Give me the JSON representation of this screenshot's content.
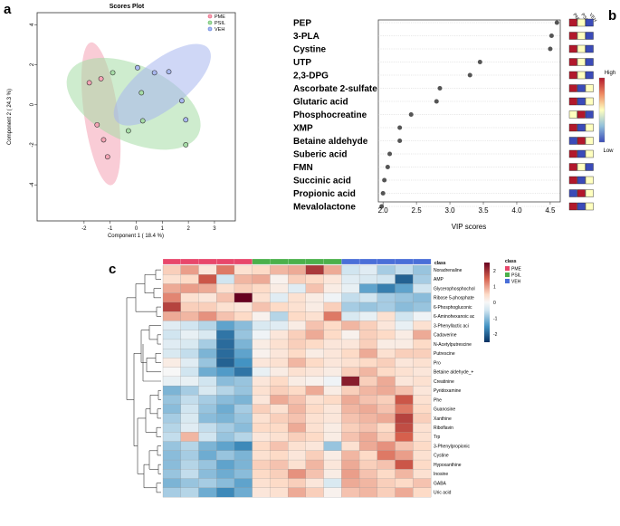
{
  "panel_labels": {
    "a": "a",
    "b": "b",
    "c": "c"
  },
  "colors": {
    "pme": "#e8476b",
    "psil": "#4bb04b",
    "veh": "#4a6fd8",
    "pme_fill": "#f4a3b4",
    "psil_fill": "#a6dca6",
    "veh_fill": "#a8b7ee",
    "dot": "#555555",
    "grid": "#d0d0d0",
    "vip_high": "#b2182b",
    "vip_mid": "#ffffbf",
    "vip_low": "#3b4bb8"
  },
  "chart_data": [
    {
      "id": "scores-plot",
      "type": "scatter",
      "title": "Scores Plot",
      "xlabel": "Component 1 ( 18.4 %)",
      "ylabel": "Component 2 ( 24.3 %)",
      "xlim": [
        -3.8,
        3.8
      ],
      "ylim": [
        -5.8,
        4.6
      ],
      "xticks": [
        -2,
        -1,
        0,
        1,
        2,
        3
      ],
      "yticks": [
        -4,
        -2,
        0,
        2,
        4
      ],
      "legend_position": "top-right",
      "series": [
        {
          "name": "PME",
          "color_key": "pme",
          "points": [
            [
              -1.8,
              1.1
            ],
            [
              -1.35,
              1.3
            ],
            [
              -1.5,
              -1.0
            ],
            [
              -1.25,
              -1.75
            ],
            [
              -1.1,
              -2.6
            ]
          ],
          "ellipse": {
            "cx": -1.35,
            "cy": -0.45,
            "rx": 0.65,
            "ry": 3.6,
            "angle": -8
          }
        },
        {
          "name": "PSIL",
          "color_key": "psil",
          "points": [
            [
              -0.9,
              1.6
            ],
            [
              0.2,
              0.6
            ],
            [
              -0.3,
              -1.3
            ],
            [
              0.25,
              -0.8
            ],
            [
              1.9,
              -2.0
            ]
          ],
          "ellipse": {
            "cx": -0.1,
            "cy": 0.05,
            "rx": 2.75,
            "ry": 1.9,
            "angle": 25
          }
        },
        {
          "name": "VEH",
          "color_key": "veh",
          "points": [
            [
              0.05,
              1.85
            ],
            [
              0.7,
              1.6
            ],
            [
              1.25,
              1.65
            ],
            [
              1.75,
              0.2
            ],
            [
              1.9,
              -0.75
            ]
          ],
          "ellipse": {
            "cx": 1.0,
            "cy": 1.0,
            "rx": 2.25,
            "ry": 1.2,
            "angle": -38
          }
        }
      ]
    },
    {
      "id": "vip-scores",
      "type": "scatter",
      "xlabel": "VIP scores",
      "xlim": [
        1.93,
        4.65
      ],
      "xticks": [
        2.0,
        2.5,
        3.0,
        3.5,
        4.0,
        4.5
      ],
      "xtick_labels": [
        "2.0",
        "2.5",
        "3.0",
        "3.5",
        "4.0",
        "4.5"
      ],
      "features": [
        "PEP",
        "3-PLA",
        "Cystine",
        "UTP",
        "2,3-DPG",
        "Ascorbate 2-sulfate",
        "Glutaric acid",
        "Phosphocreatine",
        "XMP",
        "Betaine aldehyde",
        "Suberic acid",
        "FMN",
        "Succinic acid",
        "Propionic acid",
        "Mevalolactone"
      ],
      "values": [
        4.6,
        4.52,
        4.5,
        3.45,
        3.3,
        2.85,
        2.8,
        2.42,
        2.25,
        2.25,
        2.1,
        2.07,
        2.02,
        2.0,
        1.98
      ],
      "group_labels": [
        "PME",
        "PSIL",
        "VEH"
      ],
      "group_levels": [
        [
          "H",
          "M",
          "L"
        ],
        [
          "H",
          "M",
          "L"
        ],
        [
          "H",
          "M",
          "L"
        ],
        [
          "H",
          "M",
          "L"
        ],
        [
          "H",
          "M",
          "L"
        ],
        [
          "H",
          "L",
          "M"
        ],
        [
          "H",
          "L",
          "M"
        ],
        [
          "M",
          "H",
          "L"
        ],
        [
          "H",
          "L",
          "M"
        ],
        [
          "L",
          "H",
          "M"
        ],
        [
          "H",
          "L",
          "M"
        ],
        [
          "H",
          "M",
          "L"
        ],
        [
          "H",
          "L",
          "M"
        ],
        [
          "L",
          "H",
          "M"
        ],
        [
          "H",
          "L",
          "M"
        ]
      ],
      "colorbar_labels": {
        "high": "High",
        "low": "Low"
      }
    },
    {
      "id": "heatmap",
      "type": "heatmap",
      "class_label": "class",
      "classes": [
        "PME",
        "PSIL",
        "VEH"
      ],
      "class_columns": [
        5,
        5,
        5
      ],
      "colorbar_ticks": [
        2,
        1,
        0,
        -1,
        -2
      ],
      "vmin": -2.5,
      "vmax": 2.5,
      "rows": [
        "Noradrenaline",
        "AMP",
        "Glycerophosphochol",
        "Ribose 5-phosphate",
        "6-Phosphogluconic",
        "6-Aminohexanoic ac",
        "3-Phenyllactic aci",
        "Cadaverine",
        "N-Acetylputrescine",
        "Putrescine",
        "Pro",
        "Betaine aldehyde_+",
        "Creatinine",
        "Pyridoxamine",
        "Phe",
        "Guanosine",
        "Xanthine",
        "Riboflavin",
        "Trp",
        "3-Phenylpropionic",
        "Cystine",
        "Hypoxanthine",
        "Inosine",
        "GABA",
        "Uric acid"
      ],
      "values": [
        [
          0.6,
          1.0,
          0.3,
          1.3,
          0.4,
          0.5,
          0.8,
          0.9,
          1.9,
          0.9,
          -0.5,
          -0.3,
          -0.8,
          -0.6,
          -0.9
        ],
        [
          0.4,
          0.5,
          1.6,
          -0.5,
          0.8,
          0.9,
          0.1,
          0.6,
          0.5,
          0.3,
          -0.3,
          -0.4,
          -0.5,
          -2.0,
          -0.8
        ],
        [
          0.9,
          1.0,
          0.9,
          0.4,
          0.6,
          0.5,
          0.2,
          -0.3,
          0.7,
          0.2,
          -0.2,
          -1.3,
          -1.7,
          -1.3,
          -0.5
        ],
        [
          1.2,
          0.4,
          0.3,
          0.7,
          2.6,
          0.4,
          -0.3,
          0.4,
          0.2,
          -0.1,
          -0.6,
          -0.5,
          -0.8,
          -0.9,
          -1.0
        ],
        [
          1.8,
          0.6,
          0.6,
          0.4,
          0.3,
          0.7,
          0.5,
          0.4,
          0.2,
          0.6,
          -0.8,
          -0.9,
          -0.8,
          -1.0,
          -0.9
        ],
        [
          0.9,
          0.8,
          1.1,
          0.7,
          0.5,
          0.1,
          -0.7,
          0.5,
          0.4,
          1.3,
          -0.4,
          -0.2,
          0.4,
          -0.5,
          -0.1
        ],
        [
          -0.3,
          -0.5,
          -0.7,
          -1.3,
          -1.0,
          -0.4,
          -0.3,
          0.2,
          0.7,
          0.5,
          0.8,
          0.6,
          0.3,
          -0.2,
          0.4
        ],
        [
          -0.5,
          -0.2,
          -0.4,
          -1.8,
          -0.9,
          -0.1,
          0.3,
          0.6,
          0.9,
          0.5,
          0.1,
          0.6,
          0.5,
          0.2,
          0.9
        ],
        [
          -0.3,
          -0.4,
          -0.8,
          -1.9,
          -1.1,
          0.2,
          0.4,
          0.6,
          0.5,
          0.3,
          0.3,
          0.6,
          0.2,
          0.2,
          0.5
        ],
        [
          -0.4,
          -0.6,
          -1.1,
          -1.9,
          -1.3,
          0.1,
          0.3,
          0.5,
          0.2,
          0.3,
          0.5,
          0.9,
          0.4,
          0.6,
          0.6
        ],
        [
          0.2,
          -0.3,
          -0.9,
          -2.0,
          -1.5,
          0.3,
          0.4,
          0.8,
          0.5,
          0.3,
          0.4,
          0.5,
          0.6,
          0.3,
          0.4
        ],
        [
          0.0,
          -0.5,
          -1.2,
          -1.4,
          -1.8,
          -0.2,
          0.2,
          0.4,
          0.3,
          0.2,
          0.6,
          0.8,
          0.5,
          0.4,
          0.3
        ],
        [
          -0.2,
          -0.2,
          -0.5,
          -1.0,
          -0.9,
          0.3,
          0.5,
          0.2,
          0.1,
          -0.1,
          2.2,
          0.6,
          0.9,
          0.3,
          0.4
        ],
        [
          -1.1,
          -0.8,
          -0.4,
          -0.7,
          -0.9,
          0.4,
          0.6,
          0.5,
          0.9,
          0.2,
          0.6,
          0.8,
          0.9,
          0.7,
          0.3
        ],
        [
          -0.9,
          -0.6,
          -0.8,
          -1.0,
          -1.1,
          0.3,
          0.9,
          0.7,
          0.4,
          0.5,
          0.9,
          0.7,
          0.6,
          1.6,
          0.4
        ],
        [
          -1.0,
          -0.5,
          -0.9,
          -1.2,
          -0.8,
          0.6,
          0.4,
          0.8,
          0.5,
          0.3,
          0.8,
          0.9,
          0.7,
          1.3,
          0.5
        ],
        [
          -0.8,
          -0.4,
          -1.0,
          -1.1,
          -0.9,
          0.4,
          0.6,
          0.7,
          0.4,
          0.3,
          0.7,
          0.8,
          0.9,
          1.8,
          0.6
        ],
        [
          -0.7,
          -0.3,
          -0.6,
          -0.8,
          -1.0,
          0.5,
          0.5,
          0.9,
          0.4,
          0.2,
          0.6,
          0.7,
          0.5,
          1.7,
          0.4
        ],
        [
          -0.6,
          0.8,
          -0.5,
          -0.9,
          -0.7,
          0.3,
          0.4,
          0.6,
          0.5,
          0.2,
          0.7,
          0.9,
          0.6,
          1.5,
          0.4
        ],
        [
          -0.9,
          -0.7,
          -1.1,
          -1.3,
          -1.6,
          0.5,
          0.7,
          0.4,
          0.3,
          -0.9,
          0.4,
          0.9,
          1.1,
          0.7,
          0.5
        ],
        [
          -1.0,
          -0.8,
          -1.2,
          -0.9,
          -1.1,
          0.4,
          0.5,
          0.3,
          0.6,
          0.2,
          0.8,
          0.5,
          1.3,
          1.0,
          0.4
        ],
        [
          -1.0,
          -0.7,
          -0.9,
          -1.3,
          -1.1,
          0.6,
          0.7,
          0.4,
          0.8,
          0.3,
          0.9,
          0.6,
          0.7,
          1.6,
          0.5
        ],
        [
          -0.9,
          -0.6,
          -1.0,
          -1.2,
          -1.0,
          0.5,
          0.6,
          1.1,
          0.7,
          0.2,
          1.0,
          0.7,
          0.5,
          0.8,
          0.4
        ],
        [
          -1.1,
          -0.9,
          -0.8,
          -1.0,
          -1.3,
          0.4,
          0.5,
          0.6,
          0.3,
          -0.4,
          0.9,
          0.8,
          0.6,
          0.5,
          0.7
        ],
        [
          -0.8,
          -0.7,
          -1.2,
          -1.6,
          -1.2,
          0.3,
          0.4,
          0.9,
          0.6,
          0.1,
          0.7,
          0.8,
          0.6,
          0.9,
          0.5
        ]
      ]
    }
  ]
}
